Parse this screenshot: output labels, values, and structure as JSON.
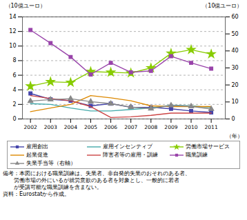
{
  "chart_data": {
    "type": "line",
    "x": [
      2002,
      2003,
      2004,
      2005,
      2006,
      2007,
      2008,
      2009,
      2010,
      2011
    ],
    "xlim": [
      2001.6,
      2011.7
    ],
    "xticks": [
      2002,
      2003,
      2004,
      2005,
      2006,
      2007,
      2008,
      2009,
      2010,
      2011
    ],
    "xlabel": "（年）",
    "ylim": [
      0,
      14
    ],
    "yticks": [
      0,
      2,
      4,
      6,
      8,
      10,
      12,
      14
    ],
    "ylabel": "（10億ユーロ）",
    "y2lim": [
      0,
      60
    ],
    "y2ticks": [
      0,
      10,
      20,
      30,
      40,
      50,
      60
    ],
    "y2label": "（10億ユーロ）",
    "grid": true,
    "legend": "bottom",
    "series": [
      {
        "name": "雇用創出",
        "color": "#4444aa",
        "marker": "square",
        "values": [
          3.5,
          2.7,
          2.5,
          1.8,
          2.1,
          1.6,
          1.6,
          1.4,
          1.1,
          0.9
        ]
      },
      {
        "name": "雇用インセンティブ",
        "color": "#44aaaa",
        "marker": "none",
        "values": [
          2.1,
          2.0,
          1.5,
          1.1,
          1.1,
          1.3,
          1.5,
          1.9,
          1.8,
          1.6
        ]
      },
      {
        "name": "労働市場サービス",
        "color": "#88cc00",
        "marker": "star",
        "values": [
          4.5,
          5.1,
          5.0,
          6.5,
          6.4,
          6.3,
          7.0,
          9.0,
          9.5,
          8.9
        ]
      },
      {
        "name": "起業促進",
        "color": "#dd8800",
        "marker": "none",
        "values": [
          1.0,
          1.5,
          2.0,
          3.2,
          2.9,
          2.5,
          1.8,
          1.7,
          1.7,
          1.7
        ]
      },
      {
        "name": "障害者等の雇用・訓練",
        "color": "#cc4444",
        "marker": "none",
        "values": [
          3.2,
          2.8,
          2.5,
          1.7,
          0.2,
          0.3,
          0.5,
          0.8,
          0.8,
          0.8
        ]
      },
      {
        "name": "職業訓練",
        "color": "#9944aa",
        "marker": "square",
        "values": [
          12.2,
          10.4,
          8.5,
          6.1,
          7.7,
          6.4,
          6.6,
          8.6,
          7.7,
          6.9
        ]
      },
      {
        "name": "失業手当等（右軸）",
        "color": "#888888",
        "marker": "triangle",
        "axis": "y2",
        "values": [
          10.5,
          11.4,
          11.9,
          10.2,
          9.0,
          7.0,
          6.1,
          8.0,
          7.4,
          5.9
        ]
      }
    ],
    "annotations": [
      "備考：本図における職業訓練は、失業者、非自発的失業のおそれのある者、",
      "　　労働市場の外にいるが就労意欲のある者を対象とし、一般的に若者",
      "　　が受講可能な職業訓練を含まない。",
      "資料：Eurostatから作成。"
    ]
  }
}
